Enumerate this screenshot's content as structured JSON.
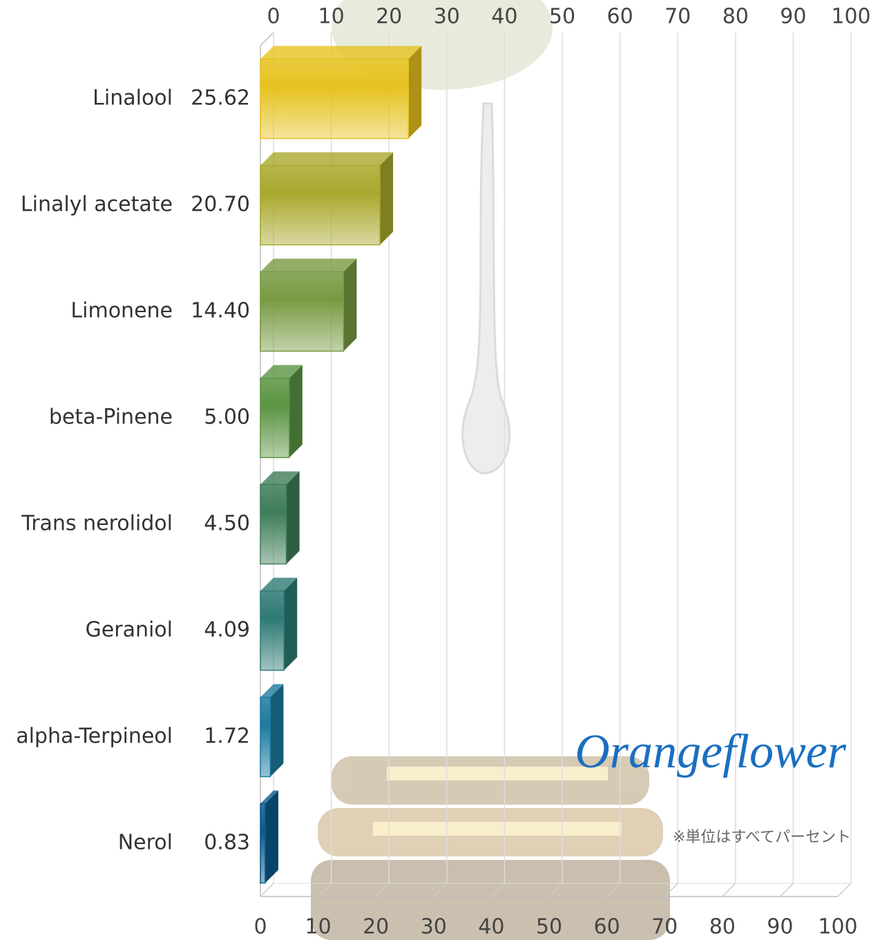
{
  "chart_data": {
    "type": "bar",
    "orientation": "horizontal",
    "categories": [
      "Linalool",
      "Linalyl acetate",
      "Limonene",
      "beta-Pinene",
      "Trans nerolidol",
      "Geraniol",
      "alpha-Terpineol",
      "Nerol"
    ],
    "values": [
      25.62,
      20.7,
      14.4,
      5,
      4.5,
      4.09,
      1.72,
      0.83
    ],
    "value_labels": [
      "25.62",
      "20.70",
      "14.40",
      "5.00",
      "4.50",
      "4.09",
      "1.72",
      "0.83"
    ],
    "colors": [
      "#e6c21e",
      "#a9a82c",
      "#789a42",
      "#5b9442",
      "#3e7c58",
      "#2e7a74",
      "#1d7aa0",
      "#0b5a8c"
    ],
    "xlim": [
      0,
      100
    ],
    "xticks": [
      0,
      10,
      20,
      30,
      40,
      50,
      60,
      70,
      80,
      90,
      100
    ],
    "grid": true,
    "annotations": [
      "Orangeflower",
      "※単位はすべてパーセント"
    ]
  }
}
